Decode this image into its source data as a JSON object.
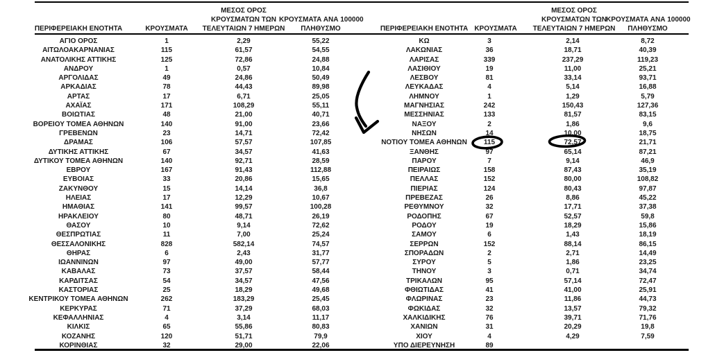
{
  "page": {
    "background": "#ffffff",
    "text_color": "#1a1a1a",
    "rule_color": "#000000"
  },
  "headers": {
    "region": "ΠΕΡΙΦΕΡΕΙΑΚΗ ΕΝΟΤΗΤΑ",
    "cases": "ΚΡΟΥΣΜΑΤΑ",
    "avg7_l1": "ΜΕΣΟΣ ΟΡΟΣ",
    "avg7_l2": "ΚΡΟΥΣΜΑΤΩΝ ΤΩΝ",
    "avg7_l3": "ΤΕΛΕΥΤΑΙΩΝ 7 ΗΜΕΡΩΝ",
    "per100k_l1": "ΚΡΟΥΣΜΑΤΑ ΑΝΑ 100000",
    "per100k_l2": "ΠΛΗΘΥΣΜΟ"
  },
  "left_table": {
    "rows": [
      [
        "ΑΓΙΟ ΟΡΟΣ",
        "1",
        "2,29",
        "55,22"
      ],
      [
        "ΑΙΤΩΛΟΑΚΑΡΝΑΝΙΑΣ",
        "115",
        "61,57",
        "54,55"
      ],
      [
        "ΑΝΑΤΟΛΙΚΗΣ ΑΤΤΙΚΗΣ",
        "125",
        "72,86",
        "24,88"
      ],
      [
        "ΑΝΔΡΟΥ",
        "1",
        "0,57",
        "10,84"
      ],
      [
        "ΑΡΓΟΛΙΔΑΣ",
        "49",
        "24,86",
        "50,49"
      ],
      [
        "ΑΡΚΑΔΙΑΣ",
        "78",
        "44,43",
        "89,98"
      ],
      [
        "ΑΡΤΑΣ",
        "17",
        "6,71",
        "25,05"
      ],
      [
        "ΑΧΑΪΑΣ",
        "171",
        "108,29",
        "55,11"
      ],
      [
        "ΒΟΙΩΤΙΑΣ",
        "48",
        "21,00",
        "40,71"
      ],
      [
        "ΒΟΡΕΙΟΥ ΤΟΜΕΑ ΑΘΗΝΩΝ",
        "140",
        "91,00",
        "23,66"
      ],
      [
        "ΓΡΕΒΕΝΩΝ",
        "23",
        "14,71",
        "72,42"
      ],
      [
        "ΔΡΑΜΑΣ",
        "106",
        "57,57",
        "107,85"
      ],
      [
        "ΔΥΤΙΚΗΣ ΑΤΤΙΚΗΣ",
        "67",
        "34,57",
        "41,63"
      ],
      [
        "ΔΥΤΙΚΟΥ ΤΟΜΕΑ ΑΘΗΝΩΝ",
        "140",
        "92,71",
        "28,59"
      ],
      [
        "ΕΒΡΟΥ",
        "167",
        "91,43",
        "112,88"
      ],
      [
        "ΕΥΒΟΙΑΣ",
        "33",
        "20,86",
        "15,65"
      ],
      [
        "ΖΑΚΥΝΘΟΥ",
        "15",
        "14,14",
        "36,8"
      ],
      [
        "ΗΛΕΙΑΣ",
        "17",
        "12,29",
        "10,67"
      ],
      [
        "ΗΜΑΘΙΑΣ",
        "141",
        "99,57",
        "100,28"
      ],
      [
        "ΗΡΑΚΛΕΙΟΥ",
        "80",
        "48,71",
        "26,19"
      ],
      [
        "ΘΑΣΟΥ",
        "10",
        "9,14",
        "72,62"
      ],
      [
        "ΘΕΣΠΡΩΤΙΑΣ",
        "11",
        "7,00",
        "25,24"
      ],
      [
        "ΘΕΣΣΑΛΟΝΙΚΗΣ",
        "828",
        "582,14",
        "74,57"
      ],
      [
        "ΘΗΡΑΣ",
        "6",
        "2,43",
        "31,77"
      ],
      [
        "ΙΩΑΝΝΙΝΩΝ",
        "97",
        "49,00",
        "57,77"
      ],
      [
        "ΚΑΒΑΛΑΣ",
        "73",
        "37,57",
        "58,44"
      ],
      [
        "ΚΑΡΔΙΤΣΑΣ",
        "54",
        "34,57",
        "47,56"
      ],
      [
        "ΚΑΣΤΟΡΙΑΣ",
        "25",
        "18,29",
        "49,68"
      ],
      [
        "ΚΕΝΤΡΙΚΟΥ ΤΟΜΕΑ ΑΘΗΝΩΝ",
        "262",
        "183,29",
        "25,45"
      ],
      [
        "ΚΕΡΚΥΡΑΣ",
        "71",
        "37,29",
        "68,03"
      ],
      [
        "ΚΕΦΑΛΛΗΝΙΑΣ",
        "4",
        "3,14",
        "11,17"
      ],
      [
        "ΚΙΛΚΙΣ",
        "65",
        "55,86",
        "80,83"
      ],
      [
        "ΚΟΖΑΝΗΣ",
        "120",
        "51,71",
        "79,9"
      ],
      [
        "ΚΟΡΙΝΘΙΑΣ",
        "32",
        "29,00",
        "22,06"
      ]
    ]
  },
  "right_table": {
    "rows": [
      [
        "ΚΩ",
        "3",
        "2,14",
        "8,72"
      ],
      [
        "ΛΑΚΩΝΙΑΣ",
        "36",
        "18,71",
        "40,39"
      ],
      [
        "ΛΑΡΙΣΑΣ",
        "339",
        "237,29",
        "119,23"
      ],
      [
        "ΛΑΣΙΘΙΟΥ",
        "19",
        "11,00",
        "25,21"
      ],
      [
        "ΛΕΣΒΟΥ",
        "81",
        "33,14",
        "93,71"
      ],
      [
        "ΛΕΥΚΑΔΑΣ",
        "4",
        "5,14",
        "16,88"
      ],
      [
        "ΛΗΜΝΟΥ",
        "1",
        "1,29",
        "5,79"
      ],
      [
        "ΜΑΓΝΗΣΙΑΣ",
        "242",
        "150,43",
        "127,36"
      ],
      [
        "ΜΕΣΣΗΝΙΑΣ",
        "133",
        "81,57",
        "83,15"
      ],
      [
        "ΝΑΞΟΥ",
        "2",
        "1,86",
        "9,6"
      ],
      [
        "ΝΗΣΩΝ",
        "14",
        "10,00",
        "18,75"
      ],
      [
        "ΝΟΤΙΟΥ ΤΟΜΕΑ ΑΘΗΝΩΝ",
        "115",
        "72,57",
        "21,71"
      ],
      [
        "ΞΑΝΘΗΣ",
        "97",
        "65,14",
        "87,21"
      ],
      [
        "ΠΑΡΟΥ",
        "7",
        "9,14",
        "46,9"
      ],
      [
        "ΠΕΙΡΑΙΩΣ",
        "158",
        "87,43",
        "35,19"
      ],
      [
        "ΠΕΛΛΑΣ",
        "152",
        "80,00",
        "108,82"
      ],
      [
        "ΠΙΕΡΙΑΣ",
        "124",
        "80,43",
        "97,87"
      ],
      [
        "ΠΡΕΒΕΖΑΣ",
        "26",
        "8,86",
        "45,22"
      ],
      [
        "ΡΕΘΥΜΝΟΥ",
        "32",
        "17,71",
        "37,38"
      ],
      [
        "ΡΟΔΟΠΗΣ",
        "67",
        "52,57",
        "59,8"
      ],
      [
        "ΡΟΔΟΥ",
        "19",
        "18,29",
        "15,86"
      ],
      [
        "ΣΑΜΟΥ",
        "6",
        "1,43",
        "18,19"
      ],
      [
        "ΣΕΡΡΩΝ",
        "152",
        "88,14",
        "86,15"
      ],
      [
        "ΣΠΟΡΑΔΩΝ",
        "2",
        "2,71",
        "14,49"
      ],
      [
        "ΣΥΡΟΥ",
        "5",
        "1,86",
        "23,25"
      ],
      [
        "ΤΗΝΟΥ",
        "3",
        "0,71",
        "34,74"
      ],
      [
        "ΤΡΙΚΑΛΩΝ",
        "95",
        "57,14",
        "72,47"
      ],
      [
        "ΦΘΙΩΤΙΔΑΣ",
        "41",
        "41,00",
        "25,91"
      ],
      [
        "ΦΛΩΡΙΝΑΣ",
        "23",
        "11,86",
        "44,73"
      ],
      [
        "ΦΩΚΙΔΑΣ",
        "32",
        "13,57",
        "79,32"
      ],
      [
        "ΧΑΛΚΙΔΙΚΗΣ",
        "76",
        "39,71",
        "71,76"
      ],
      [
        "ΧΑΝΙΩΝ",
        "31",
        "20,29",
        "19,8"
      ],
      [
        "ΧΙΟΥ",
        "4",
        "4,29",
        "7,59"
      ],
      [
        "ΥΠΟ ΔΙΕΡΕΥΝΗΣΗ",
        "89",
        "",
        ""
      ]
    ]
  },
  "annotations": {
    "ink_color": "#000000",
    "arrow_points_to_row": "ΝΟΤΙΟΥ ΤΟΜΕΑ ΑΘΗΝΩΝ",
    "circled_values": [
      "115",
      "72,57"
    ]
  }
}
